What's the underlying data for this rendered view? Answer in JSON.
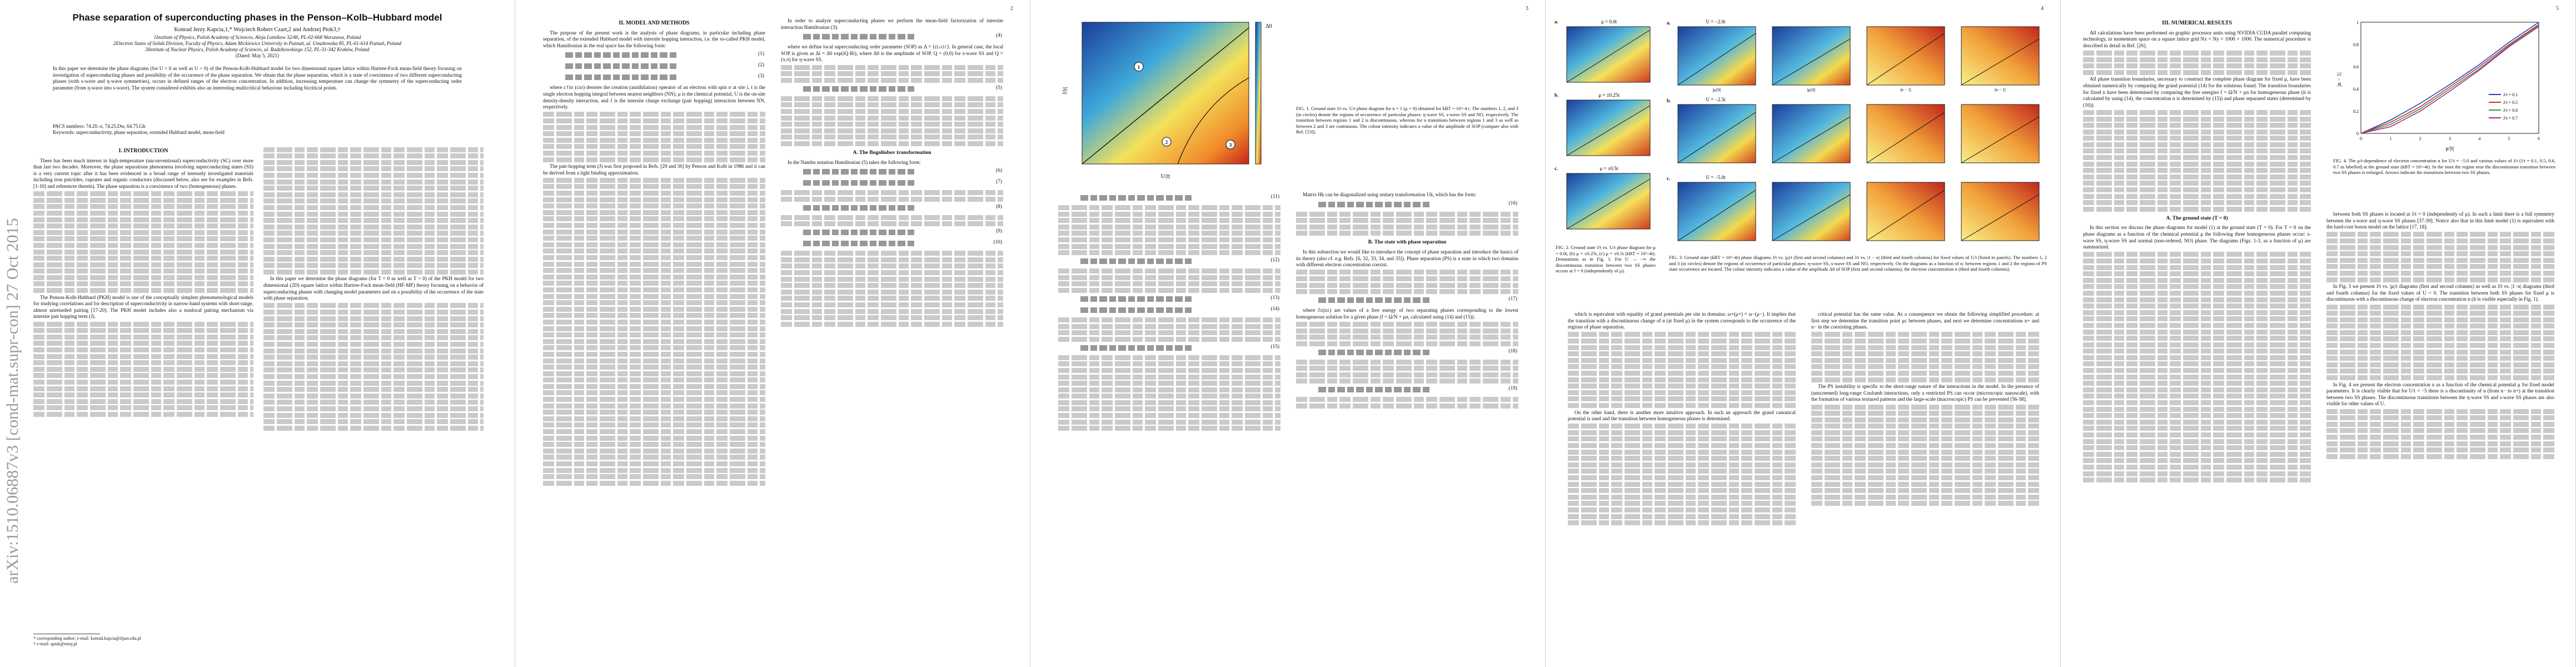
{
  "arxiv_id": "arXiv:1510.06887v3  [cond-mat.supr-con]  27 Oct 2015",
  "pages": [
    {
      "number": ""
    },
    {
      "number": "2"
    },
    {
      "number": "3"
    },
    {
      "number": "4"
    },
    {
      "number": "5"
    }
  ],
  "paper": {
    "title": "Phase separation of superconducting phases in the Penson–Kolb–Hubbard model",
    "authors": "Konrad Jerzy Kapcia,1,* Wojciech Robert Czart,2 and Andrzej Ptok3,†",
    "affiliations": [
      "1Institute of Physics, Polish Academy of Sciences, Aleja Lotnikow 32/46, PL-02-668 Warszawa, Poland",
      "2Electron States of Solids Division, Faculty of Physics, Adam Mickiewicz University in Poznań, ul. Umultowska 85, PL-61-614 Poznań, Poland",
      "3Institute of Nuclear Physics, Polish Academy of Sciences, ul. Radzikowskiego 152, PL-31-342 Kraków, Poland"
    ],
    "date": "(Dated: May 5, 2021)",
    "abstract": "In this paper we determine the phase diagrams (for U < 0 as well as U > 0) of the Penson-Kolb-Hubbard model for two dimensional square lattice within Hartree-Fock mean-field theory focusing on investigation of superconducting phases and possibility of the occurrence of the phase separation. We obtain that the phase separation, which is a state of coexistence of two different superconducting phases (with s-wave and η-wave symmetries), occurs in defined ranges of the electron concentration. In addition, increasing temperature can change the symmetry of the superconducting order parameter (from η-wave into s-wave). The system considered exhibits also an interesting multicritical behaviour including bicritical points.",
    "pacs": "PACS numbers: 74.20.-z, 74.25.Dw, 64.75.Gh",
    "keywords": "Keywords: superconductivity, phase separation, extended Hubbard model, mean-field"
  },
  "headings": {
    "intro": "I.   INTRODUCTION",
    "model": "II.   MODEL AND METHODS",
    "bogoliubov": "A.   The Bogoliubov transformation",
    "state_with_ps": "B.   The state with phase separation",
    "numerical": "III.   NUMERICAL RESULTS",
    "ground": "A.   The ground state (T = 0)"
  },
  "text": {
    "intro_p1": "There has been much interest in high-temperature (unconventional) superconductivity (SC) over more than last two decades. Moreover, the phase separations phenomena involving superconducting states (SS) is a very current topic after it has been evidenced in a broad range of intensely investigated materials including iron pnictides, cuprates and organic conductors (discussed below, also see for examples in Refs. [1-10] and references therein). The phase separation is a coexistence of two (homogeneous) phases.",
    "intro_p2": "The Penson-Kolb-Hubbard (PKH) model is one of the conceptually simplest phenomenological models for studying correlations and for description of superconductivity in narrow-band systems with short-range, almost unretarded pairing [17-20]. The PKH model includes also a nonlocal pairing mechanism via intersite pair hopping term (J).",
    "intro_p3": "In this paper we determine the phase diagrams (for T = 0 as well as T > 0) of the PKH model for two dimensional (2D) square lattice within Hartree-Fock mean-field (HF-MF) theory focusing on a behavior of superconducting phases with changing model parameters and on a possibility of the occurrence of the state with phase separation.",
    "model_p1": "The purpose of the present work is the analysis of phase diagrams, in particular including phase separation, of the extended Hubbard model with intersite hopping interaction, i.e. the so-called PKH model, which Hamiltonian in the real space has the following form:",
    "model_p2": "where c†iσ (ciσ) denotes the creation (annihilation) operator of an electron with spin σ at site i, t is the single electron hopping integral between nearest neighbors (NN), μ is the chemical potential, U is the on-site density-density interaction, and J is the intersite charge exchange (pair hopping) interaction between NN, respectively.",
    "model_p3": "The pair-hopping term (J) was first proposed in Refs. [29 and 30] by Penson and Kolb in 1986 and it can be derived from a tight binding approximation.",
    "col3_p1": "In order to analyze superconducting phases we perform the mean-field factorization of intersite interaction Hamiltonian (3):",
    "col3_p2": "where we define local superconducting order parameter (SOP) as Δ = ⟨ci↓ci↑⟩. In general case, the local SOP is given as Δi = Δ0 exp(iQ·Ri), where Δ0 is the amplitude of SOP. Q = (0,0) for s-wave SS and Q = (π,π) for η-wave SS.",
    "bog_p1": "In the Nambu notation Hamiltonian (5) takes the following form:",
    "col4_p1": "Matrix Hk can be diagonalized using unitary transformation Uk, which has the form:",
    "ps_p1": "In this subsection we would like to introduce the concept of phase separation and introduce the basics of its theory (also cf. e.g. Refs. [6, 32, 33, 34, and 35]). Phase separation (PS) is a state in which two domains with different electron concentration coexist.",
    "ps_p2": "where f±(n±) are values of a free energy of two separating phases corresponding to the lowest homogeneous solution for a given phase (f = Ω/N + μn, calculated using (14) and (15)).",
    "p4_p1": "which is equivalent with equality of grand potentials per site in domains: ω+(μ+) = ω−(μ−). It implies that the transition with a discontinuous change of n (at fixed μ) in the system corresponds to the occurrence of the regions of phase separation.",
    "p4_p2": "On the other hand, there is another more intuitive approach. In such an approach the grand canonical potential is used and the transition between homogeneous phases is determined.",
    "p4_p3": "critical potential has the same value. As a consequence we obtain the following simplified procedure: at first step we determine the transition point μc between phases, and next we determine concentrations n+ and n− in the coexisting phases.",
    "p4_p4": "The PS instability is specific to the short-range nature of the interactions in the model. In the presence of (unscreened) long-range Coulomb interactions, only a restricted PS can occur (microscopic nanoscale), with the formation of various textured patterns and the large-scale (macroscopic) PS can be prevented [56-58].",
    "num_p1": "All calculations have been performed on graphic processor units using NVIDIA CUDA parallel computing technology, in momentum space on a square lattice grid Nx × Ny = 1000 × 1000. The numerical procedure is described in detail in Ref. [26].",
    "num_p2": "All phase transition boundaries, necessary to construct the complete phase diagram for fixed μ, have been obtained numerically by comparing the grand potential (14) for the solutions found. The transition boundaries for fixed n have been determined by comparing the free energies f = Ω/N + μn for homogeneous phase (it is calculated by using (14), the concentration n is determined by (15)) and phase separated states (determined by (16)).",
    "ground_p1": "In this section we discuss the phase diagrams for model (1) at the ground state (T = 0). For T = 0 on the phase diagrams as a function of the chemical potential μ the following three homogeneous phases occur: s-wave SS, η-wave SS and normal (non-ordered, NO) phase. The diagrams (Figs. 1-3, as a function of μ) are summarized.",
    "p5_right1": "between both SS phases is located at J/t = 0 (independently of μ). In such a limit there is a full symmetry between the s-wave and η-wave SS phases [37-39]. Notice also that in this limit model (1) is equivalent with the hard-core boson model on the lattice [17, 18].",
    "p5_right2": "In Fig. 3 we present J/t vs. |μ|/t diagrams (first and second columns) as well as J/t vs. |1−n| diagrams (third and fourth columns) for the fixed values of U < 0. The transition between both SS phases for fixed μ is discontinuous with a discontinuous change of electron concentration n (it is visible especially in Fig. 1).",
    "p5_right3": "In Fig. 4 we present the electron concentration n as a function of the chemical potential μ for fixed model parameters. It is clearly visible that for U/t = −5 there is a discontinuity of n (from n− to n+) at the transition between two SS phases. The discontinuous transitions between the η-wave SS and s-wave SS phases are also visible for other values of U."
  },
  "equations": {
    "e1": "(1)",
    "e2": "(2)",
    "e3": "(3)",
    "e4": "(4)",
    "e5": "(5)",
    "e6": "(6)",
    "e7": "(7)",
    "e8": "(8)",
    "e9": "(9)",
    "e10": "(10)",
    "e11": "(11)",
    "e12": "(12)",
    "e13": "(13)",
    "e14": "(14)",
    "e15": "(15)",
    "e16": "(16)",
    "e17": "(17)",
    "e18": "(18)",
    "e19": "(19)"
  },
  "footnotes": {
    "f1": "* corresponding author; e-mail: konrad.kapcia@ifpan.edu.pl",
    "f2": "† e-mail: aptok@mmj.pl"
  },
  "figures": {
    "fig1": {
      "caption": "FIG. 1. Ground state J/t vs. U/t phase diagram for n = 1 (μ = 0) obtained for kBT = 10^-4 t. The numbers 1, 2, and 3 (in circles) denote the regions of occurrence of particular phases: η-wave SS, s-wave SS and NO, respectively. The transition between regions 1 and 2 is discontinuous, whereas for n transitions between regions 1 and 3 as well as between 2 and 3 are continuous. The colour intensity indicates a value of the amplitude of SOP (compare also with Ref. [53]).",
      "labels": [
        "1",
        "2",
        "3"
      ],
      "ylabel": "J/|t|",
      "xlabel": "U/|t|",
      "colorbar_label": "Δ0"
    },
    "fig2": {
      "caption": "FIG. 2. Ground state J/t vs. U/t phase diagram for μ = 0.0t, (b) μ = ±0.25t, (c) μ = ±0.5t (kBT = 10^-4t). Denotations as in Fig. 1. For U → −∞ the discontinuous transition between two SS phases occurs at J = 0 (independently of μ).",
      "panels": [
        {
          "id": "a.",
          "title": "μ = 0.0t"
        },
        {
          "id": "b.",
          "title": "μ = ±0.25t"
        },
        {
          "id": "c.",
          "title": "μ = ±0.5t"
        }
      ]
    },
    "fig3": {
      "caption": "FIG. 3. Ground state (kBT = 10^-4t) phase diagrams J/t vs. |μ|/t (first and second columns) and J/t vs. |1 − n| (third and fourth columns) for fixed values of U/t (listed in panels). The numbers 1, 2 and 3 (in circles) denote the regions of occurrence of particular phases: η-wave SS, s-wave SS and NO, respectively. On the diagrams as a function of n: between regions 1 and 2 the regions of PS state occurrence are located. The colour intensity indicates a value of the amplitude Δ0 of SOP (first and second columns), the electron concentration n (third and fourth columns).",
      "rows": [
        {
          "id": "a.",
          "U": "U = −2.0t"
        },
        {
          "id": "b.",
          "U": "U = −2.5t"
        },
        {
          "id": "c.",
          "U": "U = −5.0t"
        }
      ],
      "col_xlabels": [
        "|μ|/|t|",
        "|μ|/|t|",
        "|n − 1|",
        "|n − 1|"
      ]
    },
    "fig4": {
      "caption": "FIG. 4. The μ/t-dependence of electron concentration n for U/t = −5.0 and various values of J/t (J/t = 0.1, 0.5, 0.6, 0.7 as labelled) at the ground state (kBT = 10^-4t). In the inset the region near the discontinuous transition between two SS phases is enlarged. Arrows indicate the transitions between two SS phases.",
      "xlabel": "μ/|t|",
      "ylabel": "|n − 1|",
      "legend": [
        "J/t = 0.1",
        "J/t = 0.5",
        "J/t = 0.6",
        "J/t = 0.7"
      ],
      "colors": [
        "#1f3fbf",
        "#d8262c",
        "#2a9a3a",
        "#b5209a"
      ]
    }
  },
  "chart_data": [
    {
      "type": "line",
      "id": "fig4",
      "xlabel": "μ/|t|",
      "ylabel": "|n − 1|",
      "xlim": [
        0,
        6
      ],
      "ylim": [
        0,
        1
      ],
      "x": [
        0,
        1,
        2,
        3,
        4,
        5,
        6
      ],
      "series": [
        {
          "name": "J/t = 0.1",
          "values": [
            0.0,
            0.12,
            0.27,
            0.44,
            0.62,
            0.82,
            1.0
          ]
        },
        {
          "name": "J/t = 0.5",
          "values": [
            0.0,
            0.1,
            0.24,
            0.42,
            0.6,
            0.8,
            0.98
          ]
        },
        {
          "name": "J/t = 0.6",
          "values": [
            0.0,
            0.08,
            0.22,
            0.4,
            0.58,
            0.79,
            0.97
          ]
        },
        {
          "name": "J/t = 0.7",
          "values": [
            0.0,
            0.06,
            0.2,
            0.38,
            0.57,
            0.78,
            0.96
          ]
        }
      ]
    }
  ]
}
